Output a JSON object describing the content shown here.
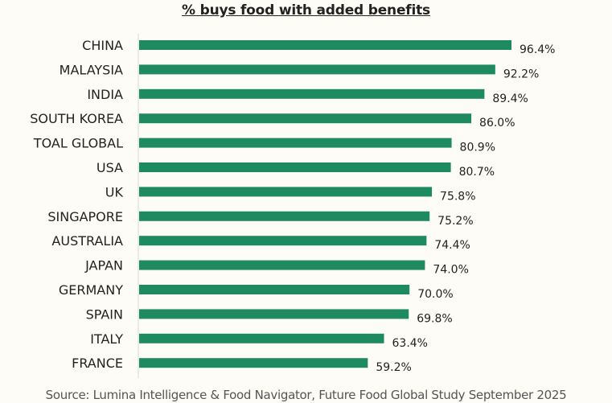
{
  "chart_data": {
    "type": "bar",
    "orientation": "horizontal",
    "title": "% buys food with added benefits",
    "categories": [
      "CHINA",
      "MALAYSIA",
      "INDIA",
      "SOUTH KOREA",
      "TOAL GLOBAL",
      "USA",
      "UK",
      "SINGAPORE",
      "AUSTRALIA",
      "JAPAN",
      "GERMANY",
      "SPAIN",
      "ITALY",
      "FRANCE"
    ],
    "values": [
      96.4,
      92.2,
      89.4,
      86.0,
      80.9,
      80.7,
      75.8,
      75.2,
      74.4,
      74.0,
      70.0,
      69.8,
      63.4,
      59.2
    ],
    "value_labels": [
      "96.4%",
      "92.2%",
      "89.4%",
      "86.0%",
      "80.9%",
      "80.7%",
      "75.8%",
      "75.2%",
      "74.4%",
      "74.0%",
      "70.0%",
      "69.8%",
      "63.4%",
      "59.2%"
    ],
    "xlim": [
      0,
      100
    ],
    "grid": false,
    "legend": "none",
    "bar_color": "#1e8a62"
  },
  "source": "Source: Lumina Intelligence & Food Navigator, Future Food Global Study September 2025"
}
